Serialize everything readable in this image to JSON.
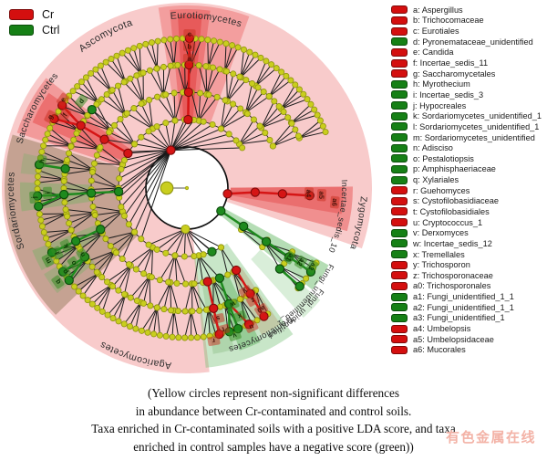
{
  "group_legend": {
    "items": [
      {
        "label": "Cr",
        "color": "#d40f0f",
        "border": "#7d0a0a"
      },
      {
        "label": "Ctrl",
        "color": "#168016",
        "border": "#0a4d0a"
      }
    ]
  },
  "caption": {
    "lines": [
      "(Yellow circles represent non-significant differences",
      "in abundance between Cr-contaminated and control soils.",
      "Taxa enriched in Cr-contaminated soils with a positive LDA score, and taxa",
      "enriched in control samples have a negative score (green))"
    ]
  },
  "watermark": "有色金属在线",
  "chart_data": {
    "type": "cladogram",
    "method": "LEfSe circular cladogram",
    "groups": [
      {
        "name": "Cr",
        "meaning": "enriched in Cr-contaminated soils (positive LDA score)",
        "color": "#d40f0f"
      },
      {
        "name": "Ctrl",
        "meaning": "enriched in control soils (negative LDA score)",
        "color": "#168016"
      }
    ],
    "nonsignificant_color": "#c9ce1e",
    "legend": [
      {
        "key": "a",
        "label": "Aspergillus",
        "group": "Cr"
      },
      {
        "key": "b",
        "label": "Trichocomaceae",
        "group": "Cr"
      },
      {
        "key": "c",
        "label": "Eurotiales",
        "group": "Cr"
      },
      {
        "key": "d",
        "label": "Pyronemataceae_unidentified",
        "group": "Ctrl"
      },
      {
        "key": "e",
        "label": "Candida",
        "group": "Cr"
      },
      {
        "key": "f",
        "label": "Incertae_sedis_11",
        "group": "Cr"
      },
      {
        "key": "g",
        "label": "Saccharomycetales",
        "group": "Cr"
      },
      {
        "key": "h",
        "label": "Myrothecium",
        "group": "Ctrl"
      },
      {
        "key": "i",
        "label": "Incertae_sedis_3",
        "group": "Ctrl"
      },
      {
        "key": "j",
        "label": "Hypocreales",
        "group": "Ctrl"
      },
      {
        "key": "k",
        "label": "Sordariomycetes_unidentified_1",
        "group": "Ctrl"
      },
      {
        "key": "l",
        "label": "Sordariomycetes_unidentified_1",
        "group": "Ctrl"
      },
      {
        "key": "m",
        "label": "Sordariomycetes_unidentified",
        "group": "Ctrl"
      },
      {
        "key": "n",
        "label": "Adisciso",
        "group": "Ctrl"
      },
      {
        "key": "o",
        "label": "Pestalotiopsis",
        "group": "Ctrl"
      },
      {
        "key": "p",
        "label": "Amphisphaeriaceae",
        "group": "Ctrl"
      },
      {
        "key": "q",
        "label": "Xylariales",
        "group": "Ctrl"
      },
      {
        "key": "r",
        "label": "Guehomyces",
        "group": "Cr"
      },
      {
        "key": "s",
        "label": "Cystofilobasidiaceae",
        "group": "Cr"
      },
      {
        "key": "t",
        "label": "Cystofilobasidiales",
        "group": "Cr"
      },
      {
        "key": "u",
        "label": "Cryptococcus_1",
        "group": "Cr"
      },
      {
        "key": "v",
        "label": "Derxomyces",
        "group": "Ctrl"
      },
      {
        "key": "w",
        "label": "Incertae_sedis_12",
        "group": "Ctrl"
      },
      {
        "key": "x",
        "label": "Tremellales",
        "group": "Ctrl"
      },
      {
        "key": "y",
        "label": "Trichosporon",
        "group": "Cr"
      },
      {
        "key": "z",
        "label": "Trichosporonaceae",
        "group": "Cr"
      },
      {
        "key": "a0",
        "label": "Trichosporonales",
        "group": "Cr"
      },
      {
        "key": "a1",
        "label": "Fungi_unidentified_1_1",
        "group": "Ctrl"
      },
      {
        "key": "a2",
        "label": "Fungi_unidentified_1_1",
        "group": "Ctrl"
      },
      {
        "key": "a3",
        "label": "Fungi_unidentified_1",
        "group": "Ctrl"
      },
      {
        "key": "a4",
        "label": "Umbelopsis",
        "group": "Cr"
      },
      {
        "key": "a5",
        "label": "Umbelopsidaceae",
        "group": "Cr"
      },
      {
        "key": "a6",
        "label": "Mucorales",
        "group": "Cr"
      }
    ],
    "clade_labels": [
      {
        "t": "Ascomycota",
        "a": 118,
        "r": 188,
        "s": 11
      },
      {
        "t": "Eurotiomycetes",
        "a": 83.5,
        "r": 186,
        "s": 10.5
      },
      {
        "t": "Saccharomycetes",
        "a": 152,
        "r": 187,
        "s": 10
      },
      {
        "t": "Sordariomycetes",
        "a": 187.5,
        "r": 190,
        "s": 10.5
      },
      {
        "t": "Agaricomycetes",
        "a": 253,
        "r": 192,
        "s": 10.5
      },
      {
        "t": "Tremellomycetes",
        "a": 297,
        "r": 180,
        "s": 9.5
      },
      {
        "t": "Fungi_unidentified_1",
        "a": 318,
        "r": 177,
        "s": 8.5
      },
      {
        "t": "Fungi_unidentified",
        "a": 311,
        "r": 183,
        "s": 8.5
      },
      {
        "t": "Incertae_sedis_10",
        "a": 349.5,
        "r": 170,
        "s": 9
      },
      {
        "t": "Zygomycota",
        "a": 348.5,
        "r": 191,
        "s": 10
      }
    ],
    "layout": {
      "center": [
        205,
        206
      ],
      "ring_radii": [
        45,
        75,
        105,
        135,
        164
      ],
      "disc_radius": 203,
      "colors": {
        "node_y": "#c9ce1e",
        "node_y_br": "#8f940f",
        "node_r": "#d51515",
        "node_r_br": "#7d0a0a",
        "node_g": "#1e8a1e",
        "node_g_br": "#0b4a0b",
        "box_r_fill": "rgba(200,45,30,0.50)",
        "box_r_text": "#4a120a",
        "box_g_fill": "rgba(55,140,35,0.55)",
        "box_g_text": "#0e3a06",
        "edge": "#1a1a1a",
        "label": "#2b2b2b",
        "root_line": "#777777"
      },
      "wedges": [
        {
          "a0": -19,
          "a1": 277,
          "r0": 45,
          "r1": 203,
          "f": "#f8cbcb"
        },
        {
          "a0": 163,
          "a1": 224,
          "r0": 75,
          "r1": 200,
          "f": "rgba(120,100,60,0.40)"
        },
        {
          "a0": 142,
          "a1": 162,
          "r0": 75,
          "r1": 196,
          "f": "rgba(233,85,85,0.42)"
        },
        {
          "a0": 145.5,
          "a1": 157,
          "r0": 75,
          "r1": 184,
          "f": "rgba(228,62,62,0.45)"
        },
        {
          "a0": 70,
          "a1": 99,
          "r0": 75,
          "r1": 200,
          "f": "rgba(233,85,85,0.38)"
        },
        {
          "a0": 82.5,
          "a1": 95.5,
          "r0": 75,
          "r1": 196,
          "f": "rgba(228,62,62,0.40)"
        },
        {
          "a0": 85,
          "a1": 93,
          "r0": 75,
          "r1": 190,
          "f": "rgba(222,45,45,0.40)"
        },
        {
          "a0": 345,
          "a1": 360.5,
          "r0": 48,
          "r1": 182,
          "f": "rgba(230,70,70,0.45)"
        },
        {
          "a0": 350.5,
          "a1": 360.5,
          "r0": 48,
          "r1": 172,
          "f": "rgba(224,48,48,0.35)"
        },
        {
          "a0": 276,
          "a1": 306,
          "r0": 75,
          "r1": 198,
          "f": "rgba(110,190,110,0.38)"
        },
        {
          "a0": 279,
          "a1": 286.5,
          "r0": 105,
          "r1": 184,
          "f": "rgba(120,175,110,0.30)"
        },
        {
          "a0": 288,
          "a1": 295.5,
          "r0": 105,
          "r1": 187,
          "f": "rgba(75,165,75,0.40)"
        },
        {
          "a0": 297,
          "a1": 304.5,
          "r0": 105,
          "r1": 181,
          "f": "rgba(180,150,105,0.35)"
        },
        {
          "a0": 321,
          "a1": 331.5,
          "r0": 48,
          "r1": 177,
          "f": "rgba(90,180,90,0.45)"
        },
        {
          "a0": 312,
          "a1": 320,
          "r0": 105,
          "r1": 191,
          "f": "rgba(110,190,110,0.26)"
        },
        {
          "a0": 178,
          "a1": 188,
          "r0": 105,
          "r1": 183,
          "f": "rgba(100,180,90,0.35)"
        },
        {
          "a0": 202,
          "a1": 209.5,
          "r0": 105,
          "r1": 183,
          "f": "rgba(100,180,90,0.35)"
        },
        {
          "a0": 211,
          "a1": 219,
          "r0": 130,
          "r1": 183,
          "f": "rgba(100,180,90,0.30)"
        },
        {
          "a0": 168,
          "a1": 175,
          "r0": 135,
          "r1": 183,
          "f": "rgba(100,180,90,0.25)"
        }
      ],
      "ring_arcs": [
        {
          "r": 75,
          "ranges": [
            [
              36,
              300
            ]
          ]
        },
        {
          "r": 105,
          "ranges": [
            [
              30,
              302
            ],
            [
              322,
              329
            ]
          ]
        },
        {
          "r": 135,
          "ranges": [
            [
              25,
              303
            ],
            [
              319,
              330
            ]
          ]
        }
      ],
      "rings_def": [
        {
          "r": 164,
          "step": 2.4,
          "pr": 135,
          "ps": 8,
          "ranges": [
            [
              22,
              305
            ],
            [
              318,
              331
            ]
          ]
        },
        {
          "r": 135,
          "step": 3.3,
          "pr": 105,
          "ps": 13,
          "ranges": [
            [
              25,
              303
            ],
            [
              319,
              330
            ]
          ]
        },
        {
          "r": 105,
          "step": 5.2,
          "pr": 75,
          "ps": 20,
          "ranges": [
            [
              30,
              302
            ],
            [
              322,
              329
            ]
          ]
        },
        {
          "r": 75,
          "step": 8,
          "anchors": [
            [
              30,
              230,
              113
            ],
            [
              230,
              310,
              268
            ],
            [
              310,
              336,
              327
            ],
            [
              336,
              366,
              352
            ]
          ],
          "ranges": [
            [
              36,
              300
            ]
          ]
        }
      ],
      "chains": [
        {
          "a": 89,
          "c": "r",
          "rs": [
            75,
            105,
            135,
            164
          ]
        },
        {
          "a": 149.5,
          "c": "r",
          "rs": [
            75,
            105,
            135
          ]
        },
        {
          "a": 183,
          "c": "g",
          "rs": [
            75,
            105,
            135,
            164
          ]
        },
        {
          "a": 171,
          "c": "g",
          "rs": [
            135,
            164
          ]
        },
        {
          "a": 205.5,
          "c": "g",
          "rs": [
            105,
            135,
            164
          ]
        },
        {
          "a": 214,
          "c": "g",
          "rs": [
            135,
            164
          ]
        },
        {
          "a": 282.5,
          "c": "r",
          "rs": [
            105,
            135,
            164
          ]
        },
        {
          "a": 290,
          "c": "g",
          "rs": [
            105,
            135,
            164
          ]
        },
        {
          "a": 301,
          "c": "r",
          "rs": [
            105,
            135,
            164
          ]
        },
        {
          "a": 291.5,
          "c": "g",
          "rs": [
            75
          ]
        },
        {
          "a": 326,
          "c": "g",
          "rs": [
            45,
            75,
            105,
            135,
            164
          ]
        },
        {
          "a": 319,
          "c": "g",
          "rs": [
            135,
            164
          ]
        },
        {
          "a": 356.5,
          "c": "r",
          "rs": [
            75,
            105,
            135
          ]
        }
      ],
      "links": [
        {
          "a0": 149.5,
          "r0": 135,
          "a1": 146.5,
          "r1": 164,
          "c": "r"
        },
        {
          "a0": 149.5,
          "r0": 135,
          "a1": 152.5,
          "r1": 164,
          "c": "r"
        },
        {
          "a0": 183,
          "r0": 135,
          "a1": 187,
          "r1": 164,
          "c": "g"
        },
        {
          "a0": 214,
          "r0": 135,
          "a1": 218,
          "r1": 164,
          "c": "g"
        },
        {
          "a0": 290,
          "r0": 135,
          "a1": 294.5,
          "r1": 164,
          "c": "r"
        },
        {
          "a0": 290,
          "r0": 135,
          "a1": 286.5,
          "r1": 164,
          "c": "g"
        },
        {
          "a0": 352,
          "r0": 45,
          "a1": 356.5,
          "r1": 75,
          "c": "r"
        }
      ],
      "black_links": [
        {
          "a0": 113,
          "r0": 45,
          "a1": 89,
          "r1": 75
        },
        {
          "a0": 113,
          "r0": 45,
          "a1": 149.5,
          "r1": 75
        },
        {
          "a0": 113,
          "r0": 45,
          "a1": 183,
          "r1": 75
        },
        {
          "a0": 268,
          "r0": 45,
          "a1": 291.5,
          "r1": 75
        },
        {
          "a0": 140.5,
          "r0": 105,
          "a1": 140.5,
          "r1": 135
        }
      ],
      "singles": [
        {
          "a": 146.5,
          "r": 164,
          "c": "r"
        },
        {
          "a": 152.5,
          "r": 164,
          "c": "r"
        },
        {
          "a": 187,
          "r": 164,
          "c": "g"
        },
        {
          "a": 218,
          "r": 164,
          "c": "g"
        },
        {
          "a": 294.5,
          "r": 164,
          "c": "r"
        },
        {
          "a": 286.5,
          "r": 164,
          "c": "g"
        },
        {
          "a": 140.5,
          "r": 135,
          "c": "g"
        },
        {
          "a": 113,
          "r": 45,
          "c": "r"
        },
        {
          "a": 268,
          "r": 45,
          "c": "y"
        },
        {
          "a": 352,
          "r": 45,
          "c": "r"
        }
      ],
      "letter_boxes": [
        {
          "k": "a",
          "a": 89,
          "r": 142,
          "c": "r"
        },
        {
          "k": "b",
          "a": 89,
          "r": 155,
          "c": "r"
        },
        {
          "k": "c",
          "a": 89,
          "r": 169,
          "c": "r"
        },
        {
          "k": "d",
          "a": 140.5,
          "r": 150,
          "c": "g"
        },
        {
          "k": "e",
          "a": 144.5,
          "r": 167,
          "c": "r"
        },
        {
          "k": "f",
          "a": 149,
          "r": 156,
          "c": "r"
        },
        {
          "k": "g",
          "a": 152.5,
          "r": 169,
          "c": "r"
        },
        {
          "k": "h",
          "a": 169.5,
          "r": 162,
          "c": "g"
        },
        {
          "k": "i",
          "a": 182,
          "r": 153,
          "c": "g"
        },
        {
          "k": "j",
          "a": 183.5,
          "r": 168,
          "c": "g"
        },
        {
          "k": "k",
          "a": 205.5,
          "r": 147,
          "c": "g"
        },
        {
          "k": "l",
          "a": 206.5,
          "r": 159,
          "c": "g"
        },
        {
          "k": "m",
          "a": 207.5,
          "r": 172,
          "c": "g"
        },
        {
          "k": "n",
          "a": 212.5,
          "r": 136,
          "c": "g"
        },
        {
          "k": "o",
          "a": 213.5,
          "r": 149,
          "c": "g"
        },
        {
          "k": "p",
          "a": 214.5,
          "r": 162,
          "c": "g"
        },
        {
          "k": "q",
          "a": 216,
          "r": 175,
          "c": "g"
        },
        {
          "k": "r",
          "a": 280,
          "r": 170,
          "c": "r"
        },
        {
          "k": "s",
          "a": 283.5,
          "r": 147,
          "c": "r"
        },
        {
          "k": "t",
          "a": 284.5,
          "r": 160,
          "c": "r"
        },
        {
          "k": "u",
          "a": 295,
          "r": 168,
          "c": "r"
        },
        {
          "k": "v",
          "a": 288,
          "r": 170,
          "c": "g"
        },
        {
          "k": "w",
          "a": 291.5,
          "r": 137,
          "c": "g"
        },
        {
          "k": "x",
          "a": 292.5,
          "r": 152,
          "c": "g"
        },
        {
          "k": "y",
          "a": 299.5,
          "r": 130,
          "c": "r"
        },
        {
          "k": "z",
          "a": 300.5,
          "r": 143,
          "c": "r"
        },
        {
          "k": "a0",
          "a": 301.5,
          "r": 156,
          "c": "r"
        },
        {
          "k": "a1",
          "a": 326,
          "r": 136,
          "c": "g"
        },
        {
          "k": "a2",
          "a": 327,
          "r": 149,
          "c": "g"
        },
        {
          "k": "a3",
          "a": 328,
          "r": 162,
          "c": "g"
        },
        {
          "k": "a4",
          "a": 357.5,
          "r": 134,
          "c": "r"
        },
        {
          "k": "a5",
          "a": 357,
          "r": 148,
          "c": "r"
        },
        {
          "k": "a6",
          "a": 354.5,
          "r": 163,
          "c": "r"
        }
      ]
    }
  }
}
